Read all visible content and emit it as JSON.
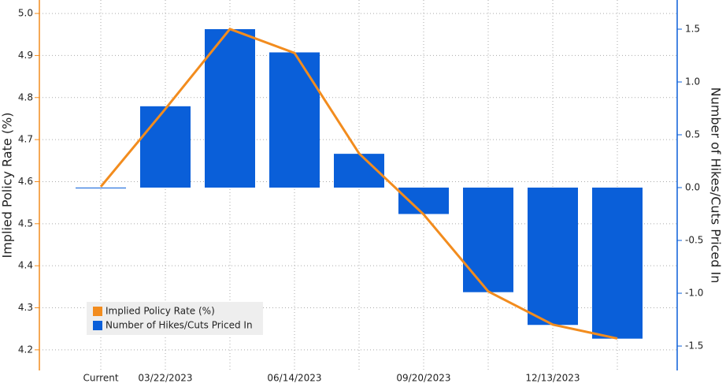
{
  "chart_data": {
    "type": "bar",
    "categories": [
      "Current",
      "03/22/2023",
      null,
      "06/14/2023",
      null,
      "09/20/2023",
      null,
      "12/13/2023",
      null
    ],
    "series": [
      {
        "name": "Implied Policy Rate (%)",
        "type": "line",
        "color": "#f28c1e",
        "values": [
          4.588,
          4.773,
          4.963,
          4.906,
          4.667,
          4.522,
          4.339,
          4.26,
          4.227
        ]
      },
      {
        "name": "Number of Hikes/Cuts Priced In",
        "type": "bar",
        "axis": "y2",
        "color": "#0a5fd9",
        "values": [
          0,
          0.77,
          1.5,
          1.28,
          0.32,
          -0.25,
          -0.99,
          -1.3,
          -1.43
        ]
      }
    ],
    "ylabel": "Implied Policy Rate (%)",
    "y2label": "Number of Hikes/Cuts Priced In",
    "ylim": [
      4.151,
      5.032
    ],
    "yticks": [
      4.2,
      4.3,
      4.4,
      4.5,
      4.6,
      4.7,
      4.8,
      4.9,
      {
        "value": 5,
        "label": "5.0"
      }
    ],
    "y2lim": [
      -1.731,
      1.776
    ],
    "y2ticks": [
      -1.5,
      {
        "value": -1,
        "label": "-1.0"
      },
      -0.5,
      {
        "value": 0,
        "label": "0.0"
      },
      0.5,
      {
        "value": 1,
        "label": "1.0"
      },
      1.5
    ],
    "grid": true,
    "legend": "lower left"
  }
}
